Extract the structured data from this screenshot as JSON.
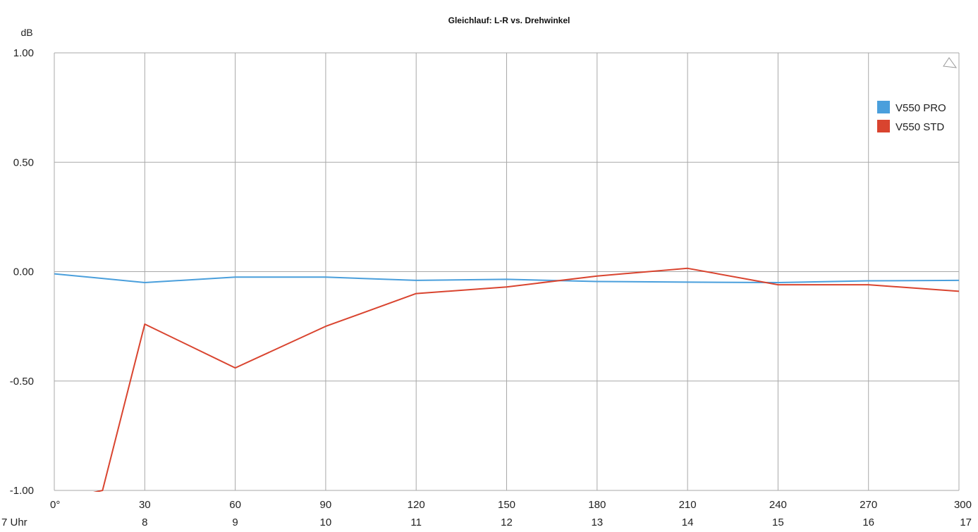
{
  "chart_data": {
    "type": "line",
    "title": "Gleichlauf: L-R vs. Drehwinkel",
    "ylabel": "dB",
    "xlabel": "",
    "xlim": [
      0,
      300
    ],
    "ylim": [
      -1.0,
      1.0
    ],
    "yticks": [
      1.0,
      0.5,
      0.0,
      -0.5,
      -1.0
    ],
    "ytick_labels": [
      "1.00",
      "0.50",
      "0.00",
      "-0.50",
      "-1.00"
    ],
    "xticks": [
      0,
      30,
      60,
      90,
      120,
      150,
      180,
      210,
      240,
      270,
      300
    ],
    "xtick_labels": [
      "0°",
      "30",
      "60",
      "90",
      "120",
      "150",
      "180",
      "210",
      "240",
      "270",
      "300"
    ],
    "xtick_labels_secondary": [
      "7 Uhr",
      "8",
      "9",
      "10",
      "11",
      "12",
      "13",
      "14",
      "15",
      "16",
      "17"
    ],
    "grid": true,
    "legend_position": "top-right",
    "series": [
      {
        "name": "V550 PRO",
        "color": "#4a9fdc",
        "x": [
          0,
          30,
          60,
          90,
          120,
          150,
          180,
          210,
          240,
          270,
          300
        ],
        "y": [
          -0.01,
          -0.05,
          -0.025,
          -0.025,
          -0.04,
          -0.035,
          -0.045,
          -0.048,
          -0.05,
          -0.042,
          -0.04
        ]
      },
      {
        "name": "V550 STD",
        "color": "#d9442f",
        "x": [
          0,
          16,
          30,
          60,
          90,
          120,
          150,
          180,
          210,
          240,
          270,
          300
        ],
        "y": [
          -1.05,
          -1.0,
          -0.24,
          -0.44,
          -0.25,
          -0.1,
          -0.07,
          -0.02,
          0.015,
          -0.06,
          -0.06,
          -0.09
        ]
      }
    ],
    "corner_icon": "triangle-icon"
  }
}
